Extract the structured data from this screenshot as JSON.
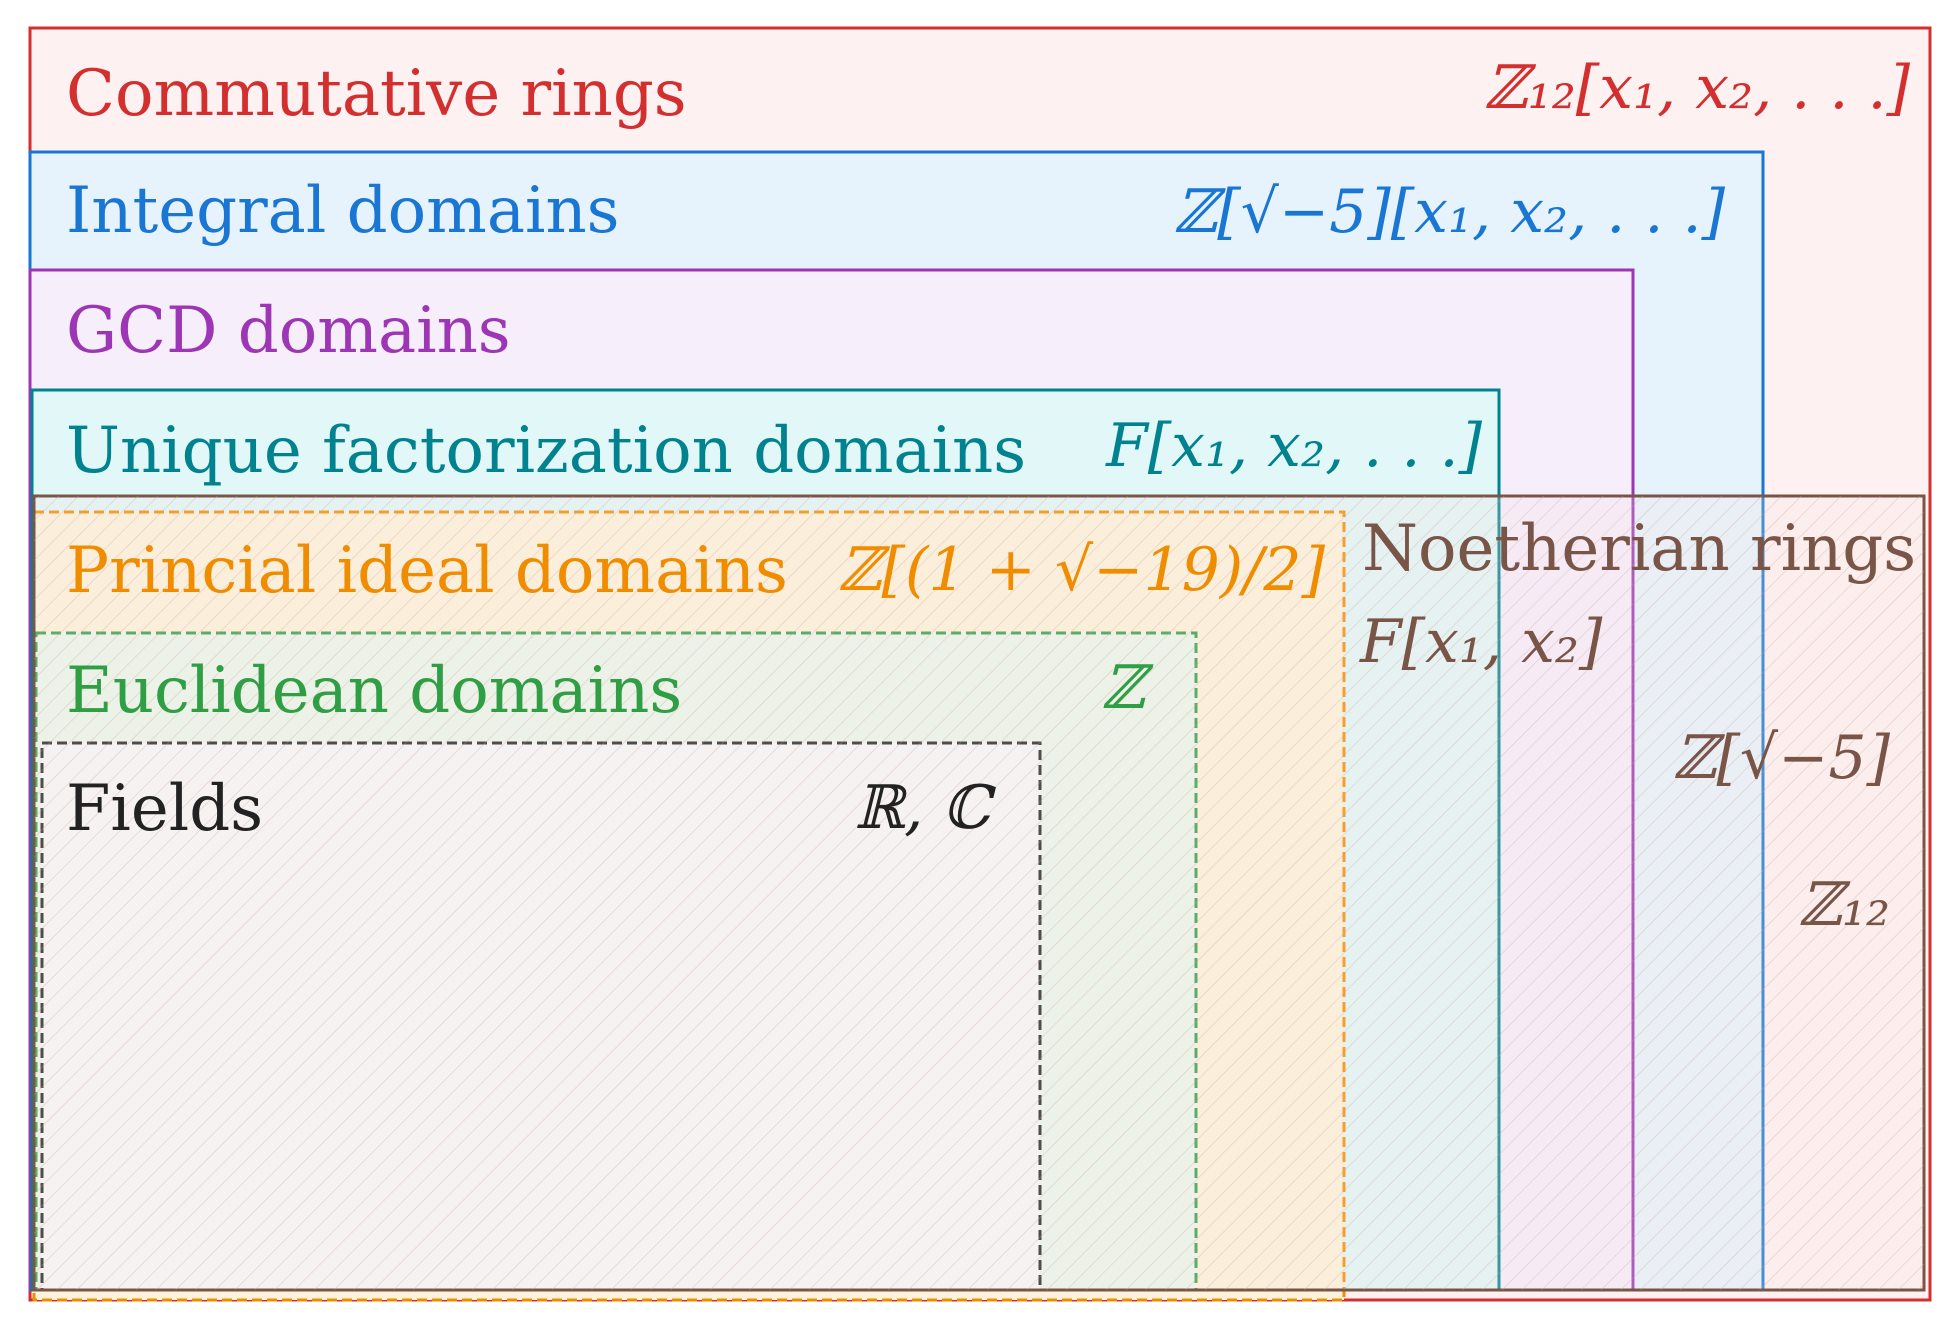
{
  "colors": {
    "commutative": "#d32f2f",
    "integral": "#1976d2",
    "gcd": "#9c36b5",
    "ufd": "#00838f",
    "pid": "#f08c00",
    "euclidean": "#2f9e44",
    "fields": "#222222",
    "noetherian": "#795548"
  },
  "sets": {
    "commutative": {
      "label": "Commutative rings",
      "example": "ℤ₁₂[x₁, x₂, . . .]"
    },
    "integral": {
      "label": "Integral domains",
      "example": "ℤ[√−5][x₁, x₂, . . .]"
    },
    "gcd": {
      "label": "GCD domains"
    },
    "ufd": {
      "label": "Unique factorization domains",
      "example": "F[x₁, x₂, . . .]"
    },
    "pid": {
      "label": "Princial ideal domains",
      "example": "ℤ[(1 + √−19)/2]"
    },
    "euclidean": {
      "label": "Euclidean domains",
      "example": "ℤ"
    },
    "fields": {
      "label": "Fields",
      "example": "ℝ, ℂ"
    },
    "noetherian": {
      "label": "Noetherian rings",
      "examples": [
        "F[x₁, x₂]",
        "ℤ[√−5]",
        "ℤ₁₂"
      ]
    }
  }
}
